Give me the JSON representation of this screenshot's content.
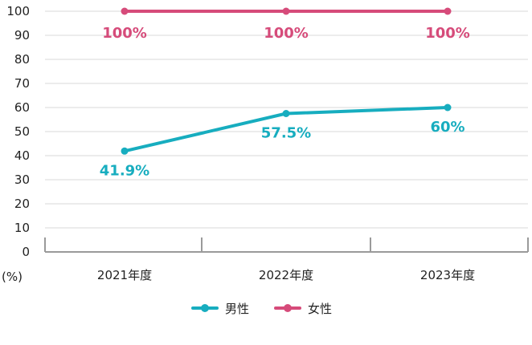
{
  "chart_data": {
    "type": "line",
    "categories": [
      "2021年度",
      "2022年度",
      "2023年度"
    ],
    "y_ticks": [
      "0",
      "10",
      "20",
      "30",
      "40",
      "50",
      "60",
      "70",
      "80",
      "90",
      "100"
    ],
    "ylim": [
      0,
      100
    ],
    "y_unit": "(%)",
    "grid": true,
    "legend_position": "bottom",
    "series": [
      {
        "name": "男性",
        "color": "#17adbf",
        "values": [
          41.9,
          57.5,
          60
        ],
        "labels": [
          "41.9%",
          "57.5%",
          "60%"
        ]
      },
      {
        "name": "女性",
        "color": "#d64b7a",
        "values": [
          100,
          100,
          100
        ],
        "labels": [
          "100%",
          "100%",
          "100%"
        ]
      }
    ]
  }
}
